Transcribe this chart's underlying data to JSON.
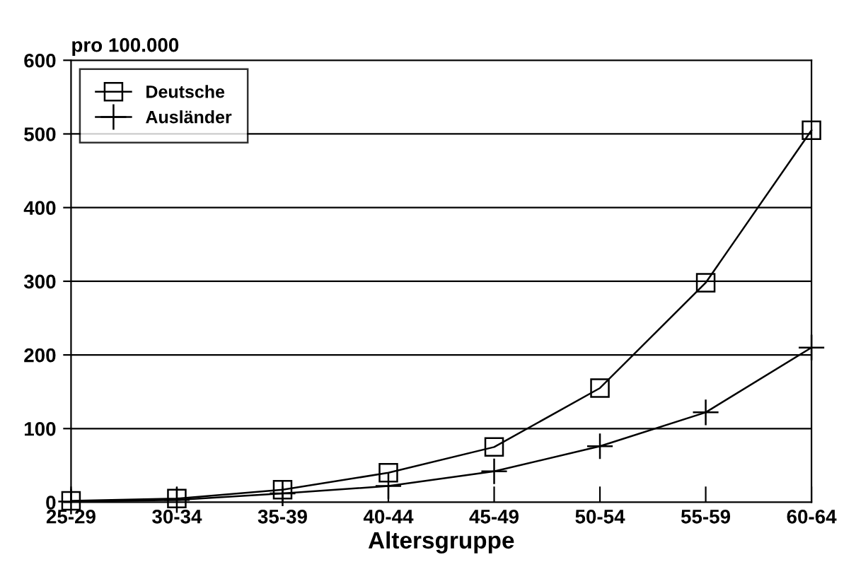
{
  "chart_data": {
    "type": "line",
    "ylabel": "pro 100.000",
    "xlabel": "Altersgruppe",
    "categories": [
      "25-29",
      "30-34",
      "35-39",
      "40-44",
      "45-49",
      "50-54",
      "55-59",
      "60-64"
    ],
    "series": [
      {
        "name": "Deutsche",
        "color": "#000000",
        "marker": "square",
        "values": [
          2,
          5,
          17,
          40,
          75,
          155,
          298,
          505
        ]
      },
      {
        "name": "Ausländer",
        "color": "#000000",
        "marker": "cross",
        "values": [
          1,
          3,
          12,
          22,
          42,
          76,
          122,
          210
        ]
      }
    ],
    "ylim": [
      0,
      600
    ],
    "yticks": [
      0,
      100,
      200,
      300,
      400,
      500,
      600
    ],
    "grid": "y",
    "legend": "top left",
    "line_style": "solid"
  }
}
